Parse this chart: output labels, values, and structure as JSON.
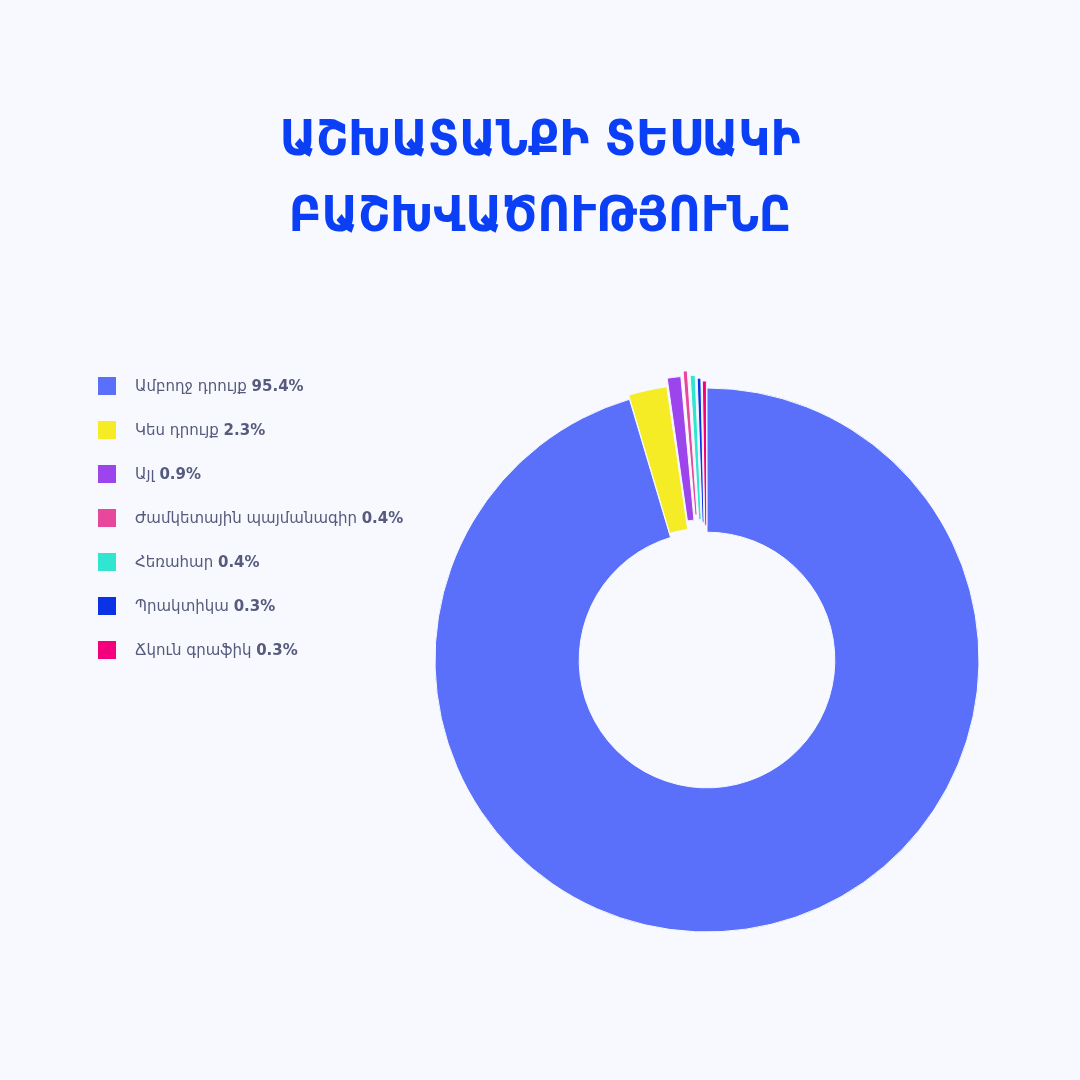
{
  "chart_data": {
    "type": "donut",
    "title": "ԱՇԽԱՏԱՆՔԻ ՏԵՍԱԿԻ ԲԱՇԽՎԱԾՈՒԹՅՈՒՆԸ",
    "categories": [
      "Ամբողջ դրույք",
      "Կես դրույք",
      "Այլ",
      "Ժամկետային պայմանագիր",
      "Հեռահար",
      "Պրակտիկա",
      "Ճկուն գրաֆիկ"
    ],
    "values": [
      95.4,
      2.3,
      0.9,
      0.4,
      0.4,
      0.3,
      0.3
    ],
    "value_labels": [
      "95.4%",
      "2.3%",
      "0.9%",
      "0.4%",
      "0.4%",
      "0.3%",
      "0.3%"
    ],
    "colors": [
      "#5a6ffa",
      "#f5ec26",
      "#9d45ec",
      "#e8489c",
      "#30e6d0",
      "#0a33e6",
      "#f5007c"
    ],
    "legend": "left"
  }
}
